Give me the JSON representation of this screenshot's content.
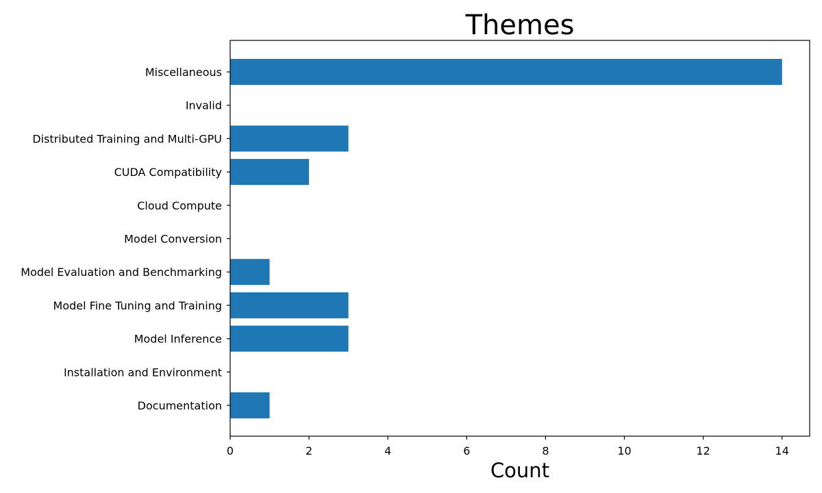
{
  "chart_data": {
    "type": "bar",
    "orientation": "horizontal",
    "title": "Themes",
    "xlabel": "Count",
    "ylabel": "",
    "categories": [
      "Miscellaneous",
      "Invalid",
      "Distributed Training and Multi-GPU",
      "CUDA Compatibility",
      "Cloud Compute",
      "Model Conversion",
      "Model Evaluation and Benchmarking",
      "Model Fine Tuning and Training",
      "Model Inference",
      "Installation and Environment",
      "Documentation"
    ],
    "values": [
      14,
      0,
      3,
      2,
      0,
      0,
      1,
      3,
      3,
      0,
      1
    ],
    "xlim": [
      0,
      14.7
    ],
    "xticks": [
      0,
      2,
      4,
      6,
      8,
      10,
      12,
      14
    ],
    "grid": false,
    "legend": "none",
    "bar_color": "#1f77b4"
  }
}
